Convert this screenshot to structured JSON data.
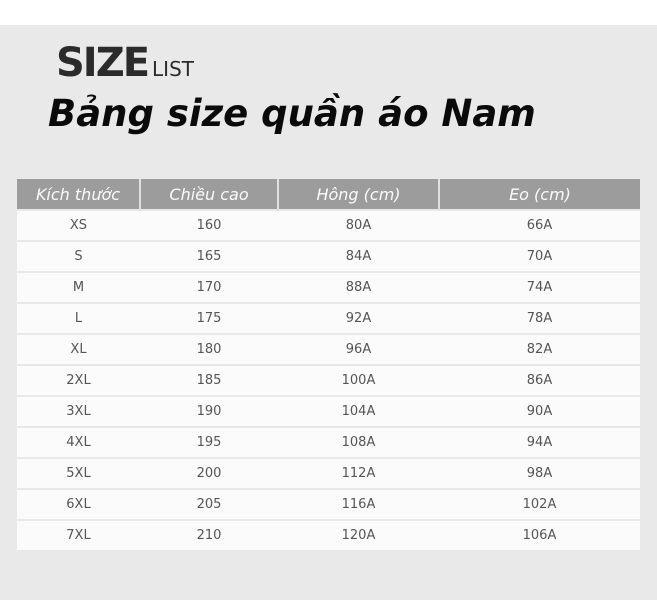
{
  "brand": {
    "big": "SIZE",
    "small": "LIST"
  },
  "title": "Bảng size quần áo Nam",
  "table": {
    "headers": [
      "Kích thước",
      "Chiều cao",
      "Hông (cm)",
      "Eo (cm)"
    ],
    "rows": [
      [
        "XS",
        "160",
        "80A",
        "66A"
      ],
      [
        "S",
        "165",
        "84A",
        "70A"
      ],
      [
        "M",
        "170",
        "88A",
        "74A"
      ],
      [
        "L",
        "175",
        "92A",
        "78A"
      ],
      [
        "XL",
        "180",
        "96A",
        "82A"
      ],
      [
        "2XL",
        "185",
        "100A",
        "86A"
      ],
      [
        "3XL",
        "190",
        "104A",
        "90A"
      ],
      [
        "4XL",
        "195",
        "108A",
        "94A"
      ],
      [
        "5XL",
        "200",
        "112A",
        "98A"
      ],
      [
        "6XL",
        "205",
        "116A",
        "102A"
      ],
      [
        "7XL",
        "210",
        "120A",
        "106A"
      ]
    ]
  }
}
